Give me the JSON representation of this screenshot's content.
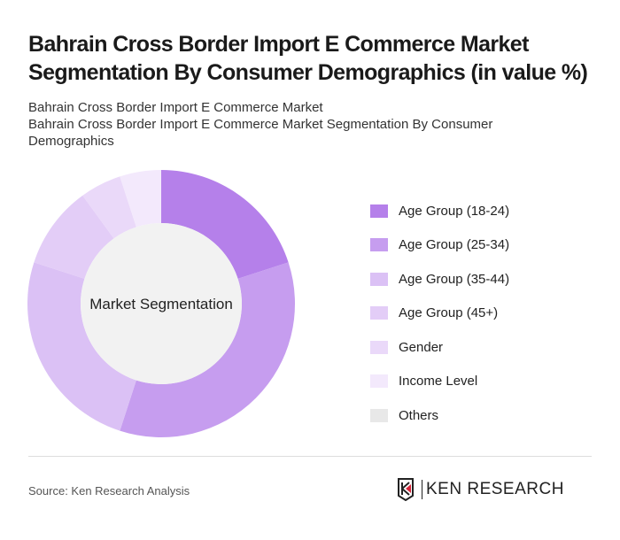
{
  "title": "Bahrain Cross Border Import E Commerce Market Segmentation By Consumer Demographics (in value %)",
  "subtitle1": "Bahrain Cross Border Import E Commerce Market",
  "subtitle2": "Bahrain Cross Border Import E Commerce Market Segmentation By Consumer Demographics",
  "source": "Source: Ken Research Analysis",
  "logo_text": "KEN RESEARCH",
  "chart_data": {
    "type": "pie",
    "center_label": "Market Segmentation",
    "legend_position": "right",
    "categories": [
      "Age Group (18-24)",
      "Age Group (25-34)",
      "Age Group (35-44)",
      "Age Group (45+)",
      "Gender",
      "Income Level",
      "Others"
    ],
    "values": [
      20,
      35,
      25,
      10,
      5,
      5,
      0
    ],
    "colors": [
      "#b580ea",
      "#c69def",
      "#dbc1f5",
      "#e3cdf7",
      "#ead9f9",
      "#f3e9fc",
      "#e8e8e8"
    ]
  }
}
